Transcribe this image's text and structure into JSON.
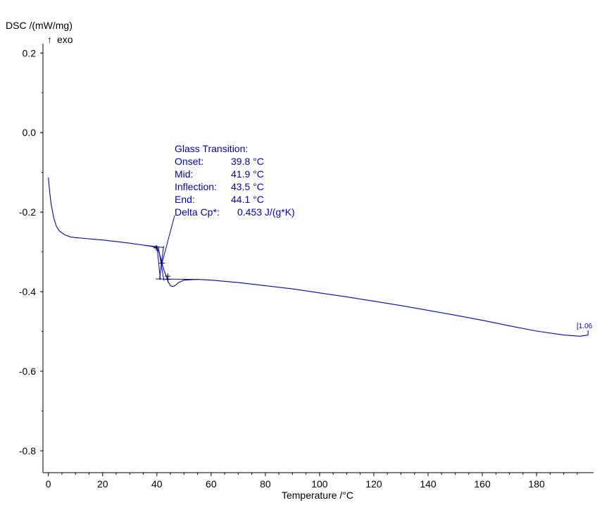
{
  "chart_data": {
    "type": "line",
    "ylabel": "DSC /(mW/mg)",
    "ylabel_note": "exo",
    "xlabel": "Temperature /°C",
    "xlim": [
      -2,
      201
    ],
    "ylim": [
      -0.855,
      0.22
    ],
    "x_ticks": [
      0,
      20,
      40,
      60,
      80,
      100,
      120,
      140,
      160,
      180
    ],
    "y_ticks": [
      0.2,
      0.0,
      -0.2,
      -0.4,
      -0.6,
      -0.8
    ],
    "y_tick_labels": [
      "0.2",
      "0.0",
      "-0.2",
      "-0.4",
      "-0.6",
      "-0.8"
    ],
    "grid": false,
    "series": [
      {
        "color": "#0000c8",
        "x": [
          0,
          0.5,
          1,
          2,
          3,
          4,
          6,
          8,
          10,
          15,
          20,
          25,
          30,
          35,
          38,
          39.8,
          40.5,
          41.2,
          41.9,
          42.6,
          43.5,
          44.1,
          45,
          46,
          47,
          48,
          50,
          55,
          60,
          70,
          80,
          90,
          100,
          110,
          120,
          130,
          140,
          150,
          160,
          170,
          180,
          190,
          196,
          198,
          199
        ],
        "y": [
          -0.113,
          -0.15,
          -0.18,
          -0.215,
          -0.236,
          -0.247,
          -0.257,
          -0.262,
          -0.264,
          -0.267,
          -0.27,
          -0.274,
          -0.278,
          -0.283,
          -0.286,
          -0.289,
          -0.296,
          -0.31,
          -0.328,
          -0.346,
          -0.362,
          -0.374,
          -0.385,
          -0.387,
          -0.383,
          -0.377,
          -0.371,
          -0.369,
          -0.371,
          -0.377,
          -0.385,
          -0.393,
          -0.403,
          -0.413,
          -0.424,
          -0.435,
          -0.447,
          -0.459,
          -0.472,
          -0.486,
          -0.499,
          -0.509,
          -0.512,
          -0.51,
          -0.509
        ]
      }
    ]
  },
  "annotation": {
    "title": "Glass Transition:",
    "rows": [
      {
        "label": "Onset:",
        "value": "39.8 °C"
      },
      {
        "label": "Mid:",
        "value": "41.9 °C"
      },
      {
        "label": "Inflection:",
        "value": "43.5 °C"
      },
      {
        "label": "End:",
        "value": "44.1 °C"
      },
      {
        "label": "Delta Cp*:",
        "value": "0.453 J/(g*K)"
      }
    ],
    "color": "#0000c8"
  },
  "end_tag": "[1.06"
}
